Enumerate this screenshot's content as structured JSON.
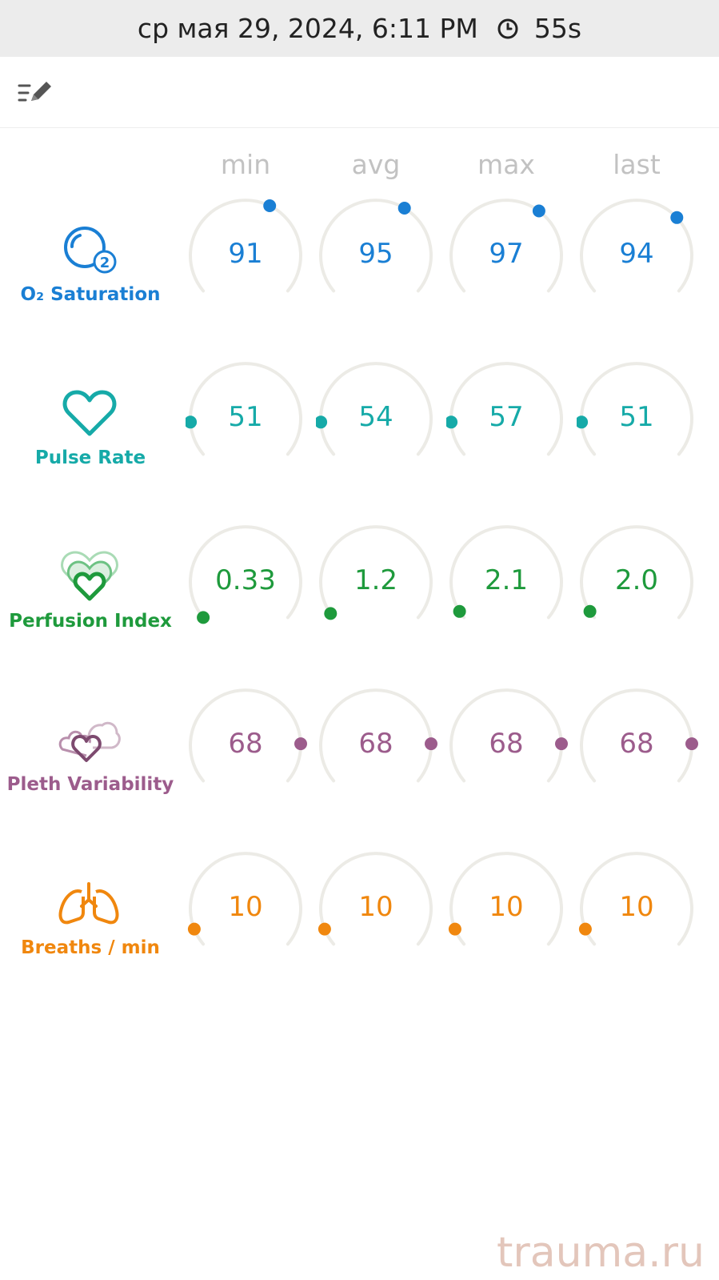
{
  "status_bar": {
    "datetime": "ср мая 29, 2024, 6:11 PM",
    "duration": "55s",
    "clock_icon": "clock-icon"
  },
  "toolbar": {
    "edit_icon": "edit-list-icon"
  },
  "columns": [
    "min",
    "avg",
    "max",
    "last"
  ],
  "metrics": [
    {
      "id": "o2",
      "label": "O₂ Saturation",
      "icon": "o2-icon",
      "color": "#1a7fd4",
      "values": [
        "91",
        "95",
        "97",
        "94"
      ],
      "levels": [
        0.6,
        0.62,
        0.64,
        0.68
      ]
    },
    {
      "id": "pulse",
      "label": "Pulse Rate",
      "icon": "heart-icon",
      "color": "#16aaa8",
      "values": [
        "51",
        "54",
        "57",
        "51"
      ],
      "levels": [
        0.14,
        0.14,
        0.14,
        0.14
      ]
    },
    {
      "id": "pi",
      "label": "Perfusion Index",
      "icon": "perfusion-icon",
      "color": "#1e9a3c",
      "values": [
        "0.33",
        "1.2",
        "2.1",
        "2.0"
      ],
      "levels": [
        0.0,
        0.02,
        0.03,
        0.03
      ]
    },
    {
      "id": "pvi",
      "label": "Pleth Variability",
      "icon": "pleth-icon",
      "color": "#9c5c8c",
      "values": [
        "68",
        "68",
        "68",
        "68"
      ],
      "levels": [
        0.84,
        0.84,
        0.84,
        0.84
      ]
    },
    {
      "id": "rr",
      "label": "Breaths / min",
      "icon": "lungs-icon",
      "color": "#f0870e",
      "values": [
        "10",
        "10",
        "10",
        "10"
      ],
      "levels": [
        0.07,
        0.07,
        0.07,
        0.07
      ]
    }
  ],
  "watermark": "trauma.ru"
}
